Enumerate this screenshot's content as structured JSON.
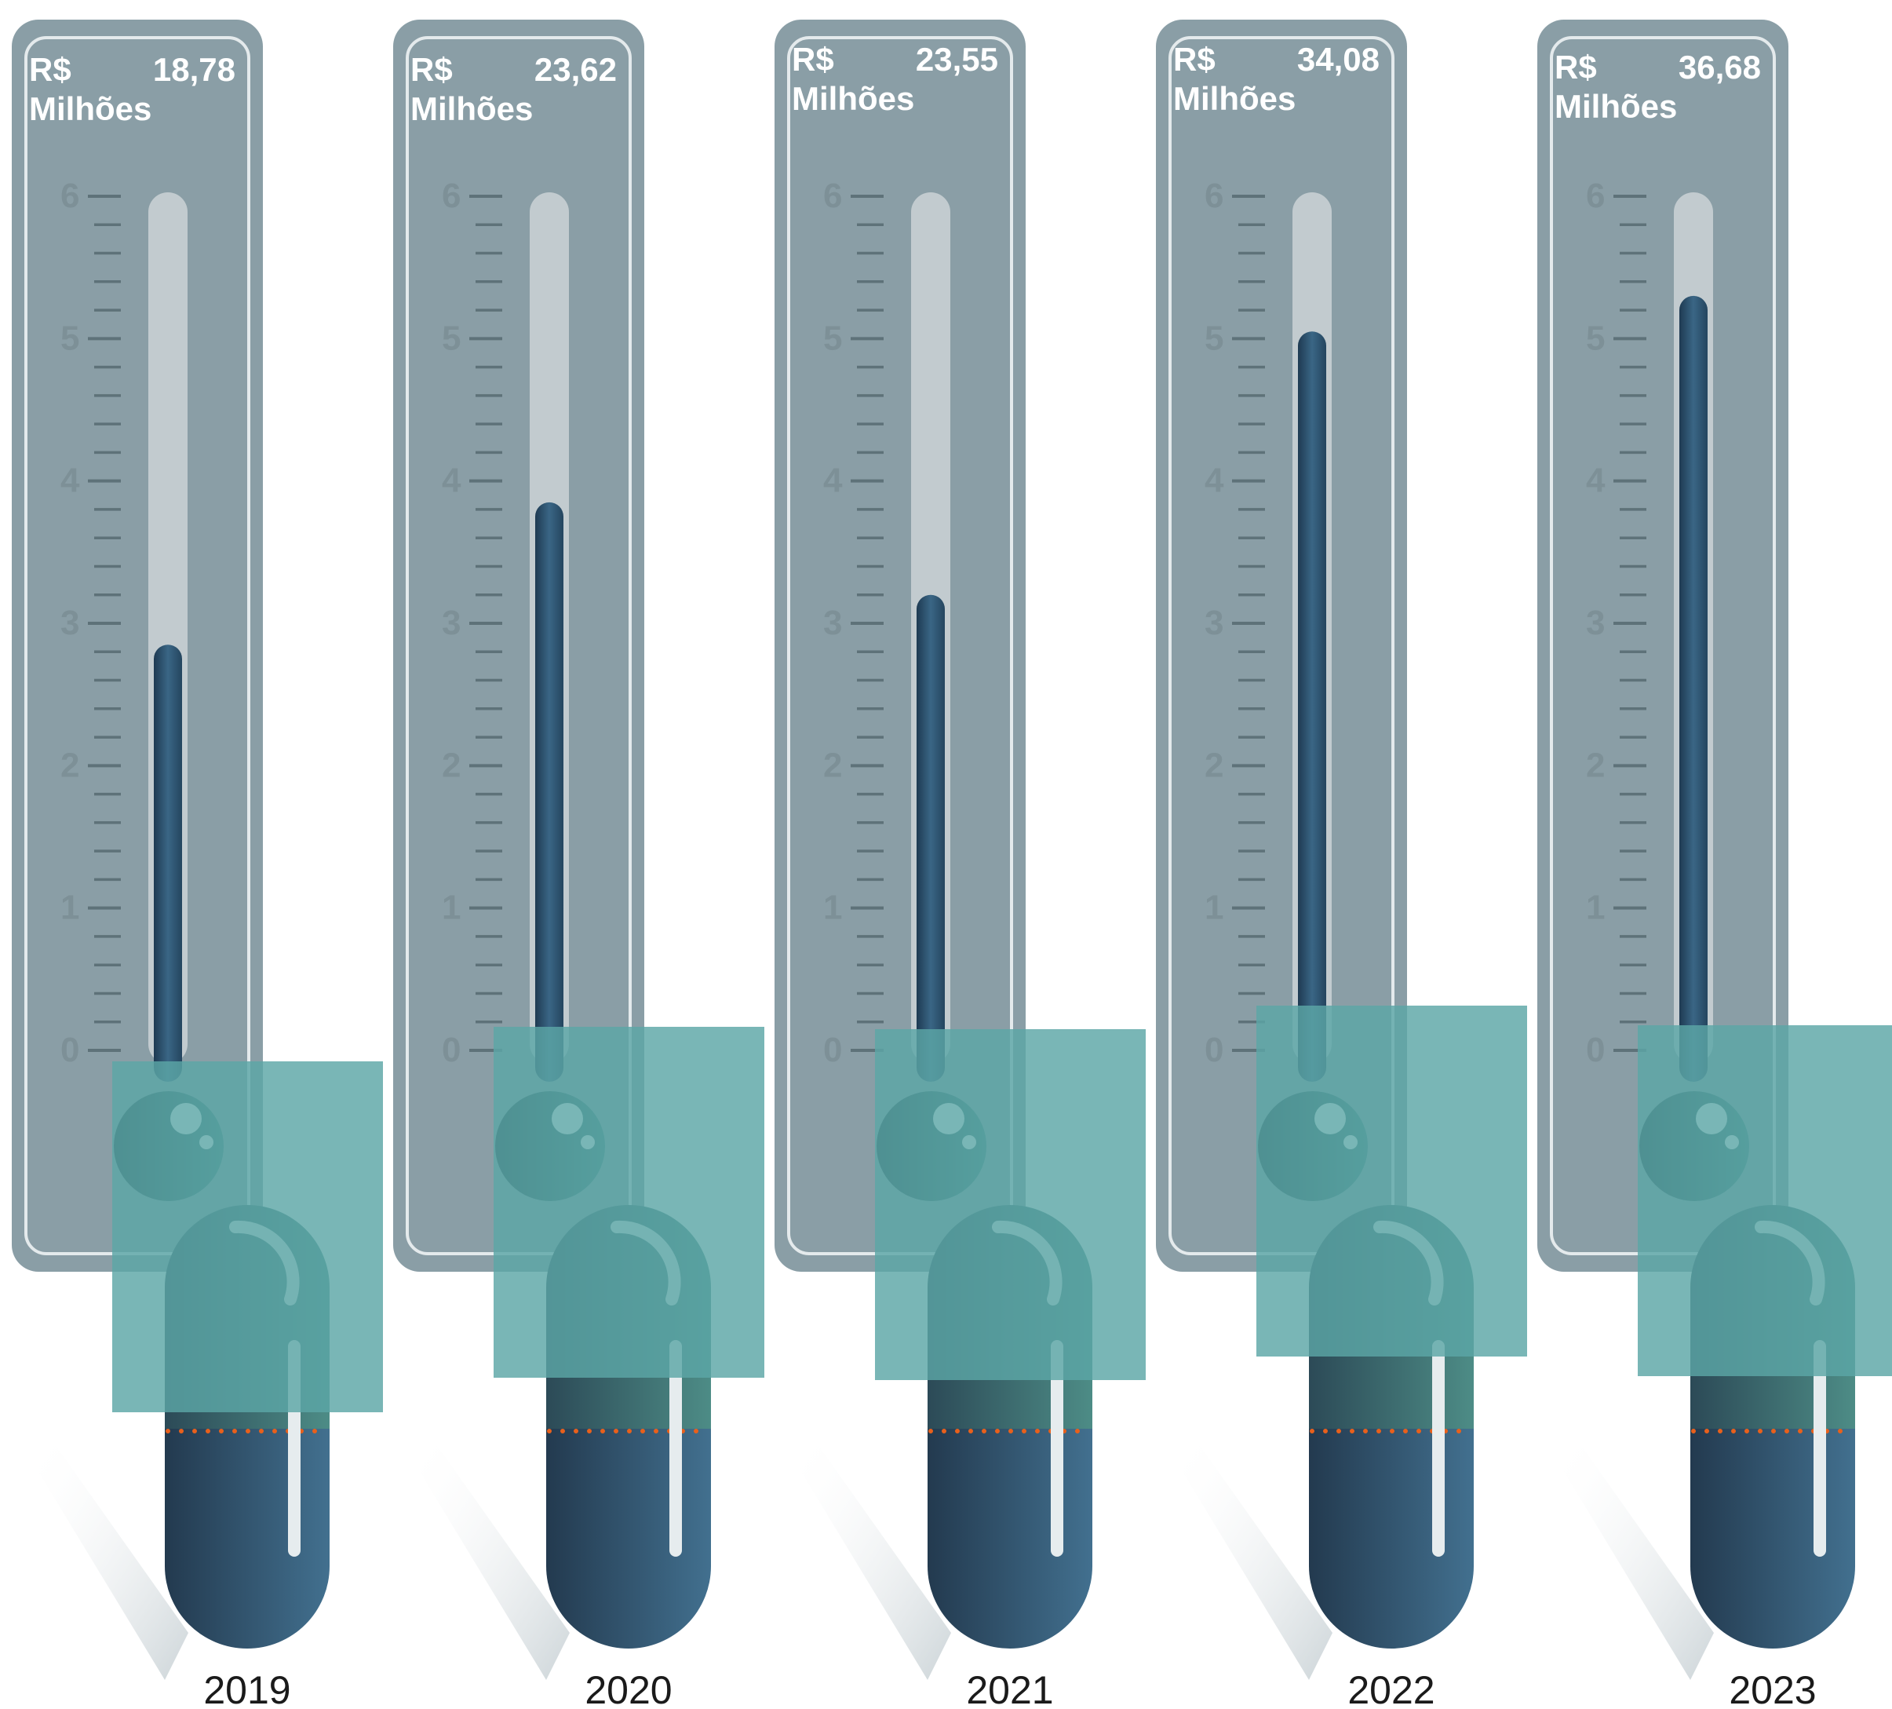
{
  "chart_data": {
    "type": "bar",
    "categories": [
      "2019",
      "2020",
      "2021",
      "2022",
      "2023"
    ],
    "values": [
      2.85,
      3.85,
      3.2,
      5.05,
      5.3
    ],
    "value_labels": [
      {
        "currency": "R$",
        "amount": "18,78",
        "unit": "Milhões"
      },
      {
        "currency": "R$",
        "amount": "23,62",
        "unit": "Milhões"
      },
      {
        "currency": "R$",
        "amount": "23,55",
        "unit": "Milhões"
      },
      {
        "currency": "R$",
        "amount": "34,08",
        "unit": "Milhões"
      },
      {
        "currency": "R$",
        "amount": "36,68",
        "unit": "Milhões"
      }
    ],
    "y_ticks": [
      "0",
      "1",
      "2",
      "3",
      "4",
      "5",
      "6"
    ],
    "ylim": [
      0,
      6
    ],
    "title": "",
    "xlabel": "",
    "ylabel": "",
    "grid": false,
    "legend": "none"
  },
  "colors": {
    "panel": "#8a9ea6",
    "panel_border": "#e4eaec",
    "tube": "#c2cbcf",
    "mercury": "#2f5573",
    "overlay": "#5ba6a6",
    "capsule_bottom": "#2f5573",
    "capsule_top": "#3b7a73",
    "dots": "#e8601c",
    "tick": "#5e7279",
    "tick_label": "#7d9097",
    "label_text": "#ffffff",
    "year_text": "#1a1a1a"
  }
}
